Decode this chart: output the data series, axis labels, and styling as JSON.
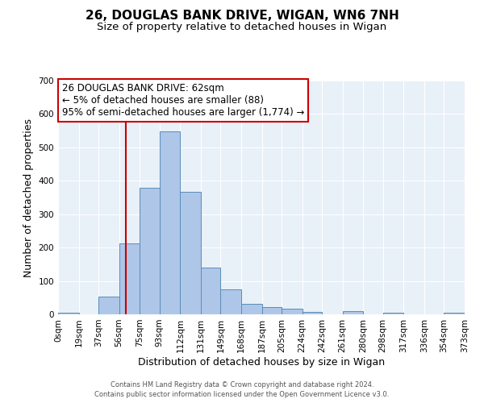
{
  "title": "26, DOUGLAS BANK DRIVE, WIGAN, WN6 7NH",
  "subtitle": "Size of property relative to detached houses in Wigan",
  "xlabel": "Distribution of detached houses by size in Wigan",
  "ylabel": "Number of detached properties",
  "bin_edges": [
    0,
    19,
    37,
    56,
    75,
    93,
    112,
    131,
    149,
    168,
    187,
    205,
    224,
    242,
    261,
    280,
    298,
    317,
    336,
    354,
    373
  ],
  "bin_labels": [
    "0sqm",
    "19sqm",
    "37sqm",
    "56sqm",
    "75sqm",
    "93sqm",
    "112sqm",
    "131sqm",
    "149sqm",
    "168sqm",
    "187sqm",
    "205sqm",
    "224sqm",
    "242sqm",
    "261sqm",
    "280sqm",
    "298sqm",
    "317sqm",
    "336sqm",
    "354sqm",
    "373sqm"
  ],
  "bar_heights": [
    6,
    0,
    52,
    213,
    380,
    547,
    368,
    140,
    75,
    32,
    21,
    16,
    8,
    0,
    10,
    0,
    5,
    0,
    0,
    5
  ],
  "bar_color": "#aec6e8",
  "bar_edge_color": "#5b8db8",
  "property_line_x": 62,
  "property_line_color": "#cc0000",
  "annotation_text": "26 DOUGLAS BANK DRIVE: 62sqm\n← 5% of detached houses are smaller (88)\n95% of semi-detached houses are larger (1,774) →",
  "annotation_box_color": "#ffffff",
  "annotation_box_edge_color": "#cc0000",
  "ylim": [
    0,
    700
  ],
  "yticks": [
    0,
    100,
    200,
    300,
    400,
    500,
    600,
    700
  ],
  "background_color": "#e8f0f8",
  "footer_line1": "Contains HM Land Registry data © Crown copyright and database right 2024.",
  "footer_line2": "Contains public sector information licensed under the Open Government Licence v3.0.",
  "title_fontsize": 11,
  "subtitle_fontsize": 9.5,
  "axis_label_fontsize": 9,
  "tick_fontsize": 7.5,
  "annotation_fontsize": 8.5
}
